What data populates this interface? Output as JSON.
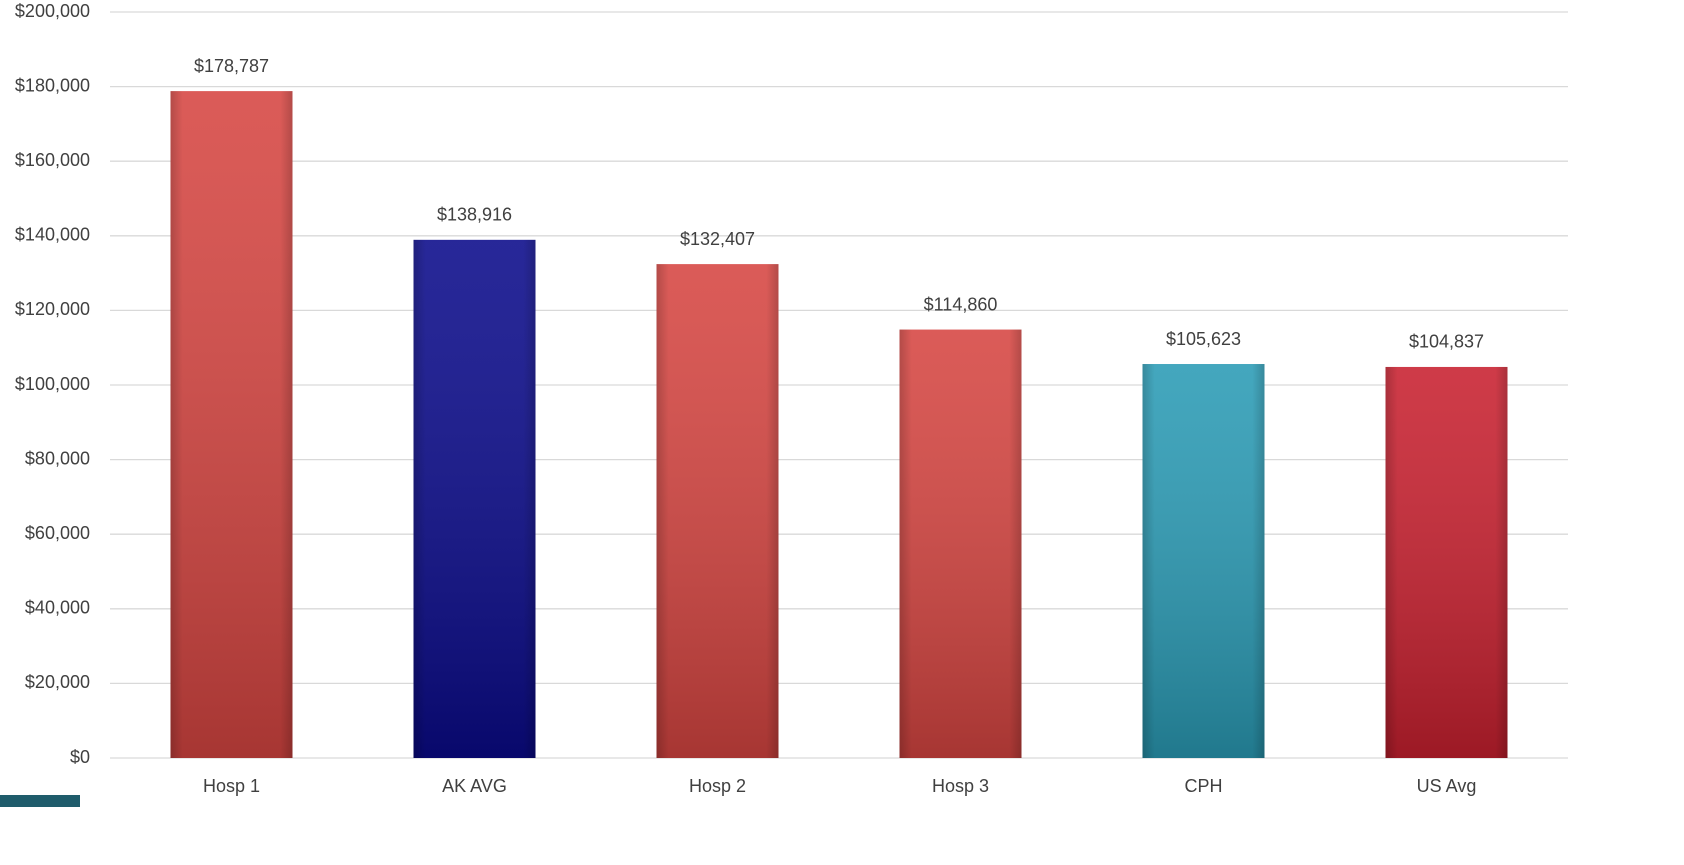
{
  "chart_data": {
    "type": "bar",
    "categories": [
      "Hosp 1",
      "AK AVG",
      "Hosp 2",
      "Hosp 3",
      "CPH",
      "US Avg"
    ],
    "values": [
      178787,
      138916,
      132407,
      114860,
      105623,
      104837
    ],
    "value_labels": [
      "$178,787",
      "$138,916",
      "$132,407",
      "$114,860",
      "$105,623",
      "$104,837"
    ],
    "colors": [
      "#d64541",
      "#0a0a8a",
      "#d64541",
      "#d64541",
      "#2a9bb5",
      "#c8202f"
    ],
    "ylim": [
      0,
      200000
    ],
    "yticks": [
      {
        "value": 0,
        "label": "$0"
      },
      {
        "value": 20000,
        "label": "$20,000"
      },
      {
        "value": 40000,
        "label": "$40,000"
      },
      {
        "value": 60000,
        "label": "$60,000"
      },
      {
        "value": 80000,
        "label": "$80,000"
      },
      {
        "value": 100000,
        "label": "$100,000"
      },
      {
        "value": 120000,
        "label": "$120,000"
      },
      {
        "value": 140000,
        "label": "$140,000"
      },
      {
        "value": 160000,
        "label": "$160,000"
      },
      {
        "value": 180000,
        "label": "$180,000"
      },
      {
        "value": 200000,
        "label": "$200,000"
      }
    ],
    "grid": true
  }
}
